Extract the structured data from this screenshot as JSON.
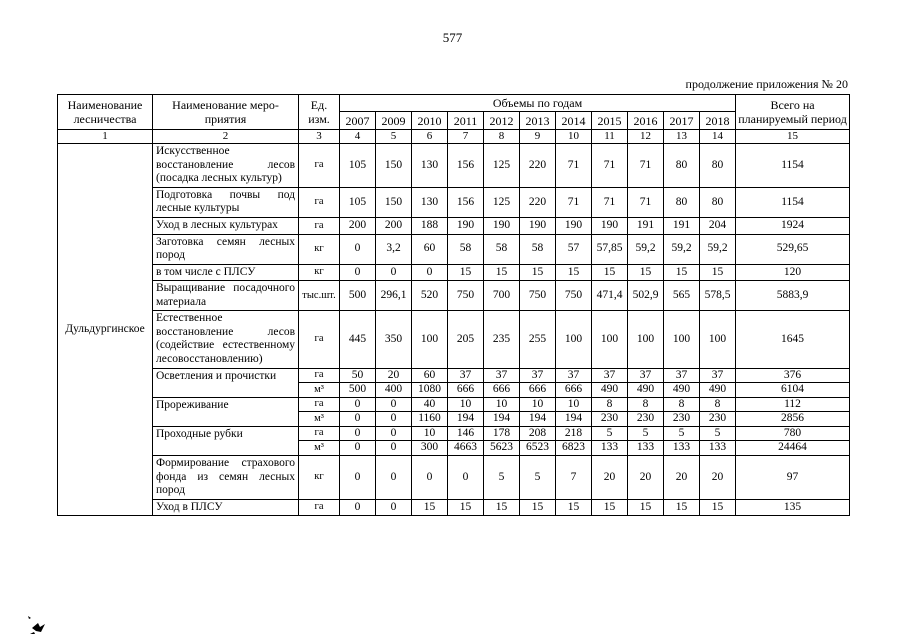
{
  "page": {
    "number": "577",
    "continuation": "продолжение приложения № 20"
  },
  "table": {
    "headers": {
      "forestry": "Наименование лесничества",
      "activity": "Наименование меро-приятия",
      "unit": "Ед. изм.",
      "volumes": "Объемы по годам",
      "total": "Всего на планируемый период",
      "years": [
        "2007",
        "2009",
        "2010",
        "2011",
        "2012",
        "2013",
        "2014",
        "2015",
        "2016",
        "2017",
        "2018"
      ],
      "col_numbers": [
        "1",
        "2",
        "3",
        "4",
        "5",
        "6",
        "7",
        "8",
        "9",
        "10",
        "11",
        "12",
        "13",
        "14",
        "15"
      ]
    },
    "forestry_name": "Дульдургинское",
    "rows": [
      {
        "activity": "Искусственное восстановление лесов (посадка лесных культур)",
        "units": [
          {
            "unit": "га",
            "values": [
              "105",
              "150",
              "130",
              "156",
              "125",
              "220",
              "71",
              "71",
              "71",
              "80",
              "80"
            ],
            "total": "1154"
          }
        ]
      },
      {
        "activity": "Подготовка почвы под лесные культуры",
        "units": [
          {
            "unit": "га",
            "values": [
              "105",
              "150",
              "130",
              "156",
              "125",
              "220",
              "71",
              "71",
              "71",
              "80",
              "80"
            ],
            "total": "1154"
          }
        ]
      },
      {
        "activity": "Уход в лесных культурах",
        "units": [
          {
            "unit": "га",
            "values": [
              "200",
              "200",
              "188",
              "190",
              "190",
              "190",
              "190",
              "190",
              "191",
              "191",
              "204"
            ],
            "total": "1924"
          }
        ]
      },
      {
        "activity": "Заготовка семян лесных пород",
        "units": [
          {
            "unit": "кг",
            "values": [
              "0",
              "3,2",
              "60",
              "58",
              "58",
              "58",
              "57",
              "57,85",
              "59,2",
              "59,2",
              "59,2"
            ],
            "total": "529,65"
          }
        ]
      },
      {
        "activity": "в том числе с ПЛСУ",
        "units": [
          {
            "unit": "кг",
            "values": [
              "0",
              "0",
              "0",
              "15",
              "15",
              "15",
              "15",
              "15",
              "15",
              "15",
              "15"
            ],
            "total": "120"
          }
        ]
      },
      {
        "activity": "Выращивание посадочного материала",
        "units": [
          {
            "unit": "тыс.шт.",
            "values": [
              "500",
              "296,1",
              "520",
              "750",
              "700",
              "750",
              "750",
              "471,4",
              "502,9",
              "565",
              "578,5"
            ],
            "total": "5883,9"
          }
        ]
      },
      {
        "activity": "Естественное восстановление лесов (содействие естественному лесовосстановлению)",
        "units": [
          {
            "unit": "га",
            "values": [
              "445",
              "350",
              "100",
              "205",
              "235",
              "255",
              "100",
              "100",
              "100",
              "100",
              "100"
            ],
            "total": "1645"
          }
        ]
      },
      {
        "activity": "Осветления и прочистки",
        "units": [
          {
            "unit": "га",
            "values": [
              "50",
              "20",
              "60",
              "37",
              "37",
              "37",
              "37",
              "37",
              "37",
              "37",
              "37"
            ],
            "total": "376"
          },
          {
            "unit": "м³",
            "values": [
              "500",
              "400",
              "1080",
              "666",
              "666",
              "666",
              "666",
              "490",
              "490",
              "490",
              "490"
            ],
            "total": "6104"
          }
        ]
      },
      {
        "activity": "Прореживание",
        "units": [
          {
            "unit": "га",
            "values": [
              "0",
              "0",
              "40",
              "10",
              "10",
              "10",
              "10",
              "8",
              "8",
              "8",
              "8"
            ],
            "total": "112"
          },
          {
            "unit": "м³",
            "values": [
              "0",
              "0",
              "1160",
              "194",
              "194",
              "194",
              "194",
              "230",
              "230",
              "230",
              "230"
            ],
            "total": "2856"
          }
        ]
      },
      {
        "activity": "Проходные рубки",
        "units": [
          {
            "unit": "га",
            "values": [
              "0",
              "0",
              "10",
              "146",
              "178",
              "208",
              "218",
              "5",
              "5",
              "5",
              "5"
            ],
            "total": "780"
          },
          {
            "unit": "м³",
            "values": [
              "0",
              "0",
              "300",
              "4663",
              "5623",
              "6523",
              "6823",
              "133",
              "133",
              "133",
              "133"
            ],
            "total": "24464"
          }
        ]
      },
      {
        "activity": "Формирование страхового фонда из семян лесных пород",
        "units": [
          {
            "unit": "кг",
            "values": [
              "0",
              "0",
              "0",
              "0",
              "5",
              "5",
              "7",
              "20",
              "20",
              "20",
              "20"
            ],
            "total": "97"
          }
        ]
      },
      {
        "activity": "Уход в ПЛСУ",
        "units": [
          {
            "unit": "га",
            "values": [
              "0",
              "0",
              "15",
              "15",
              "15",
              "15",
              "15",
              "15",
              "15",
              "15",
              "15"
            ],
            "total": "135"
          }
        ]
      }
    ]
  }
}
